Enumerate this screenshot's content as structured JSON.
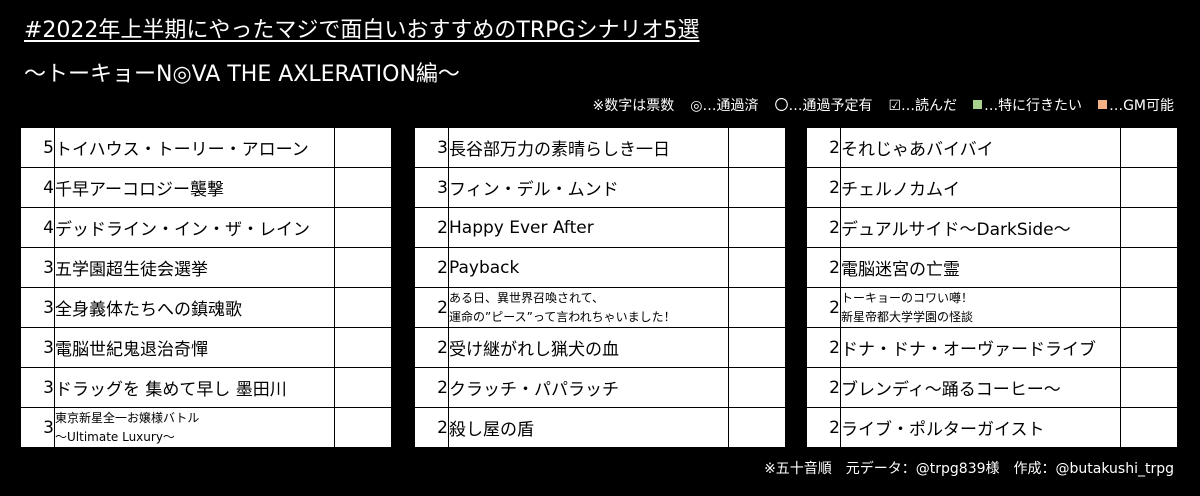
{
  "header": {
    "title": "#2022年上半期にやったマジで面白いおすすめのTRPGシナリオ5選",
    "subtitle": "～トーキョーN◎VA THE AXLERATION編～"
  },
  "legend": {
    "votes_note": "※数字は票数",
    "passed": "◎…通過済",
    "planned": "〇…通過予定有",
    "read": "☑…読んだ",
    "want": "…特に行きたい",
    "gm": "…GM可能",
    "want_color": "#a9d18e",
    "gm_color": "#f4b183"
  },
  "columns": [
    [
      {
        "votes": "5",
        "name": "トイハウス・トーリー・アローン"
      },
      {
        "votes": "4",
        "name": "千早アーコロジー襲撃"
      },
      {
        "votes": "4",
        "name": "デッドライン・イン・ザ・レイン"
      },
      {
        "votes": "3",
        "name": "五学園超生徒会選挙"
      },
      {
        "votes": "3",
        "name": "全身義体たちへの鎮魂歌"
      },
      {
        "votes": "3",
        "name": "電脳世紀鬼退治奇憚"
      },
      {
        "votes": "3",
        "name": "ドラッグを 集めて早し 墨田川"
      },
      {
        "votes": "3",
        "line1": "東京新星全一お嬢様バトル",
        "line2": "～Ultimate Luxury～"
      }
    ],
    [
      {
        "votes": "3",
        "name": "長谷部万力の素晴らしき一日"
      },
      {
        "votes": "3",
        "name": "フィン・デル・ムンド"
      },
      {
        "votes": "2",
        "name": "Happy Ever After"
      },
      {
        "votes": "2",
        "name": "Payback"
      },
      {
        "votes": "2",
        "line1": "ある日、異世界召喚されて、",
        "line2": "運命の”ピース”って言われちゃいました！"
      },
      {
        "votes": "2",
        "name": "受け継がれし猟犬の血"
      },
      {
        "votes": "2",
        "name": "クラッチ・パパラッチ"
      },
      {
        "votes": "2",
        "name": "殺し屋の盾"
      }
    ],
    [
      {
        "votes": "2",
        "name": "それじゃあバイバイ"
      },
      {
        "votes": "2",
        "name": "チェルノカムイ"
      },
      {
        "votes": "2",
        "name": "デュアルサイド～DarkSide～"
      },
      {
        "votes": "2",
        "name": "電脳迷宮の亡霊"
      },
      {
        "votes": "2",
        "line1": "トーキョーのコワい噂！",
        "line2": "新星帝都大学学園の怪談"
      },
      {
        "votes": "2",
        "name": "ドナ・ドナ・オーヴァードライブ"
      },
      {
        "votes": "2",
        "name": "ブレンディ～踊るコーヒー～"
      },
      {
        "votes": "2",
        "name": "ライブ・ポルターガイスト"
      }
    ]
  ],
  "footer": "※五十音順　元データ：@trpg839様　作成：@butakushi_trpg"
}
